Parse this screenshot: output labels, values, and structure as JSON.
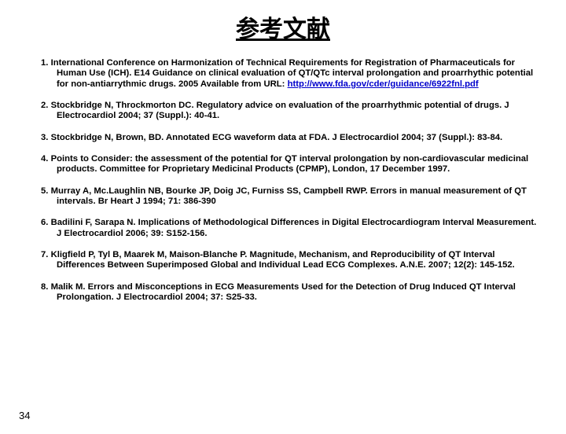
{
  "title": "参考文献",
  "page_number": "34",
  "link_color": "#0000cc",
  "text_color": "#000000",
  "background_color": "#ffffff",
  "title_fontsize": 30,
  "ref_fontsize": 11.3,
  "references": [
    {
      "num": "1.",
      "text_before_link": "International Conference on Harmonization of Technical Requirements for Registration of Pharmaceuticals for Human Use (ICH). E14 Guidance on clinical evaluation of QT/QTc interval prolongation and proarrhythic potential for non-antiarrythmic drugs. 2005\nAvailable from URL: ",
      "link_text": "http://www.fda.gov/cder/guidance/6922fnl.pdf",
      "text_after_link": ""
    },
    {
      "num": "2.",
      "text_before_link": "Stockbridge N, Throckmorton DC. Regulatory advice on evaluation of the proarrhythmic potential of drugs. J Electrocardiol 2004; 37 (Suppl.): 40-41.",
      "link_text": "",
      "text_after_link": ""
    },
    {
      "num": "3.",
      "text_before_link": "Stockbridge N, Brown, BD. Annotated ECG waveform data at FDA. J Electrocardiol 2004; 37 (Suppl.): 83-84.",
      "link_text": "",
      "text_after_link": ""
    },
    {
      "num": "4.",
      "text_before_link": "Points to Consider: the assessment of the potential for QT interval prolongation by non-cardiovascular medicinal products. Committee for Proprietary Medicinal Products (CPMP), London, 17 December 1997.",
      "link_text": "",
      "text_after_link": ""
    },
    {
      "num": "5.",
      "text_before_link": "Murray A, Mc.Laughlin NB, Bourke JP, Doig JC, Furniss SS, Campbell RWP. Errors in manual measurement  of QT intervals. Br Heart J 1994; 71: 386-390",
      "link_text": "",
      "text_after_link": ""
    },
    {
      "num": "6.",
      "text_before_link": " Badilini F, Sarapa N. Implications of Methodological Differences in Digital Electrocardiogram Interval Measurement. J Electrocardiol 2006; 39: S152-156.",
      "link_text": "",
      "text_after_link": ""
    },
    {
      "num": "7.",
      "text_before_link": "Kligfield P, Tyl B, Maarek M, Maison-Blanche P. Magnitude, Mechanism, and Reproducibility of QT Interval Differences Between Superimposed Global and Individual Lead ECG Complexes. A.N.E. 2007; 12(2): 145-152.",
      "link_text": "",
      "text_after_link": ""
    },
    {
      "num": "8.",
      "text_before_link": "Malik M. Errors and Misconceptions in ECG Measurements Used for the Detection of Drug Induced QT Interval Prolongation. J  Electrocardiol 2004; 37: S25-33.",
      "link_text": "",
      "text_after_link": ""
    }
  ]
}
